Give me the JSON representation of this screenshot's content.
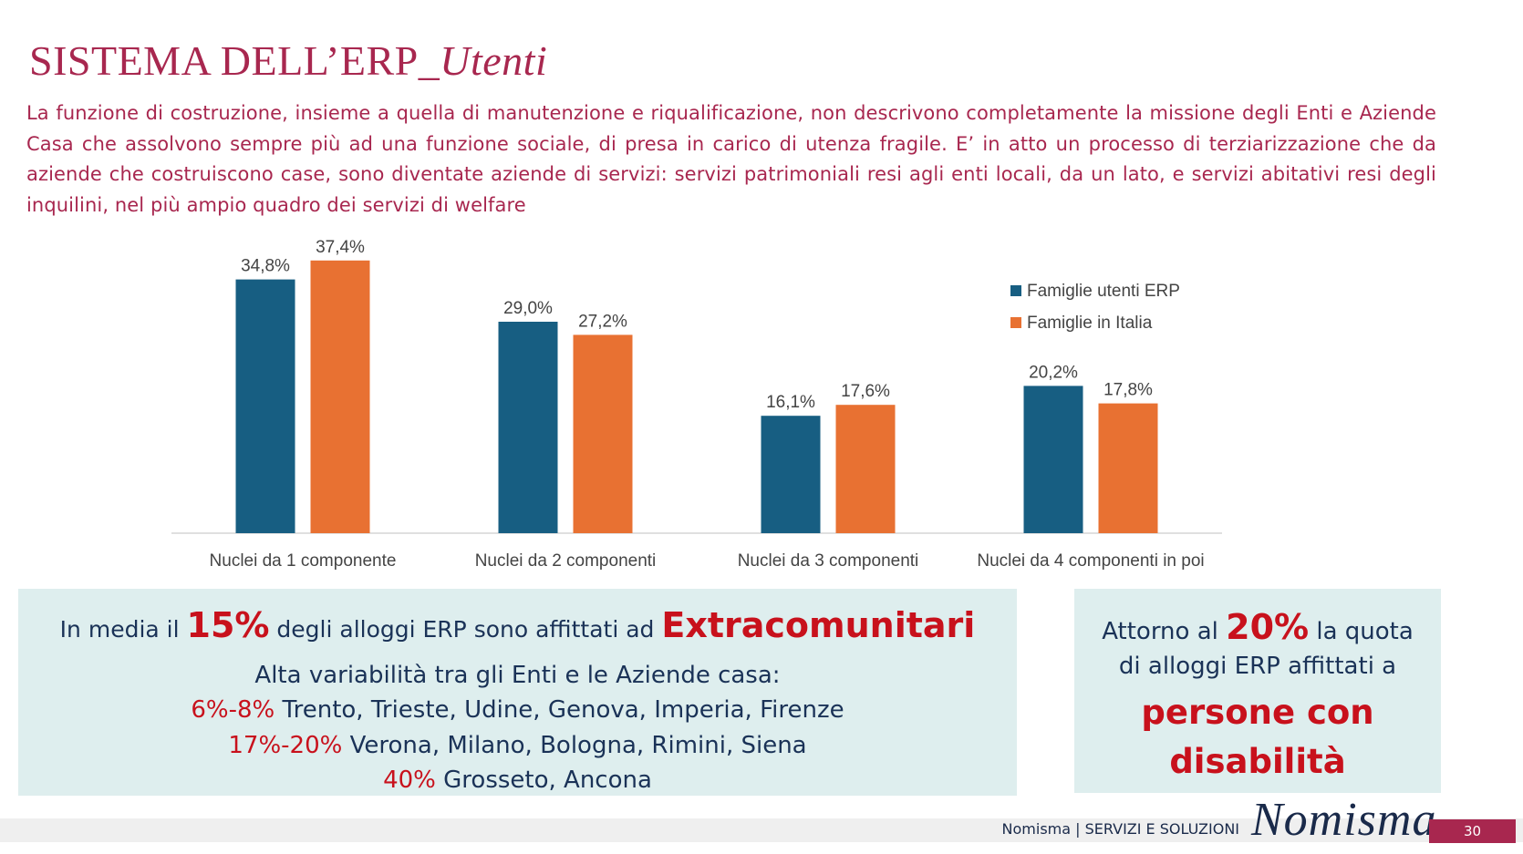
{
  "header": {
    "title_main": "SISTEMA DELL’ERP_",
    "title_italic": "Utenti",
    "intro": "La funzione di costruzione, insieme a quella di manutenzione e riqualificazione, non descrivono completamente la missione degli Enti e Aziende Casa che assolvono sempre più ad una funzione sociale, di presa in carico di utenza fragile. E’ in atto un processo di terziarizzazione che da aziende che costruiscono case, sono diventate aziende di servizi: servizi patrimoniali resi agli enti locali, da un lato, e servizi abitativi resi degli inquilini, nel più ampio quadro dei servizi di welfare"
  },
  "chart_data": {
    "type": "bar",
    "title": "",
    "xlabel": "",
    "ylabel": "",
    "ylim": [
      0,
      40
    ],
    "grid": false,
    "legend_position": "top-right",
    "categories": [
      "Nuclei da 1 componente",
      "Nuclei da 2 componenti",
      "Nuclei da 3 componenti",
      "Nuclei da 4 componenti in poi"
    ],
    "series": [
      {
        "name": "Famiglie utenti ERP",
        "color": "#175e82",
        "values": [
          34.8,
          29.0,
          16.1,
          20.2
        ],
        "labels": [
          "34,8%",
          "29,0%",
          "16,1%",
          "20,2%"
        ]
      },
      {
        "name": "Famiglie in Italia",
        "color": "#e87132",
        "values": [
          37.4,
          27.2,
          17.6,
          17.8
        ],
        "labels": [
          "37,4%",
          "27,2%",
          "17,6%",
          "17,8%"
        ]
      }
    ]
  },
  "box_left": {
    "line1_pre": "In media il ",
    "line1_pct": "15%",
    "line1_mid": " degli alloggi ERP sono affittati ad ",
    "line1_bold": "Extracomunitari",
    "line2": "Alta variabilità tra gli Enti e le Aziende casa:",
    "rows": [
      {
        "range": "6%-8%",
        "cities": " Trento, Trieste, Udine, Genova, Imperia, Firenze"
      },
      {
        "range": "17%-20%",
        "cities": " Verona, Milano, Bologna, Rimini, Siena"
      },
      {
        "range": "40%",
        "cities": " Grosseto, Ancona"
      }
    ]
  },
  "box_right": {
    "pre": "Attorno al ",
    "pct": "20%",
    "post": " la quota",
    "line2": "di alloggi ERP affittati a",
    "big1": "persone con",
    "big2": "disabilità"
  },
  "footer": {
    "text": "Nomisma | SERVIZI E SOLUZIONI",
    "logo": "Nomisma",
    "page": "30"
  },
  "colors": {
    "accent": "#a8274f",
    "erp": "#175e82",
    "italia": "#e87132",
    "highlight": "#c8111c",
    "box_bg": "#deeeee"
  }
}
